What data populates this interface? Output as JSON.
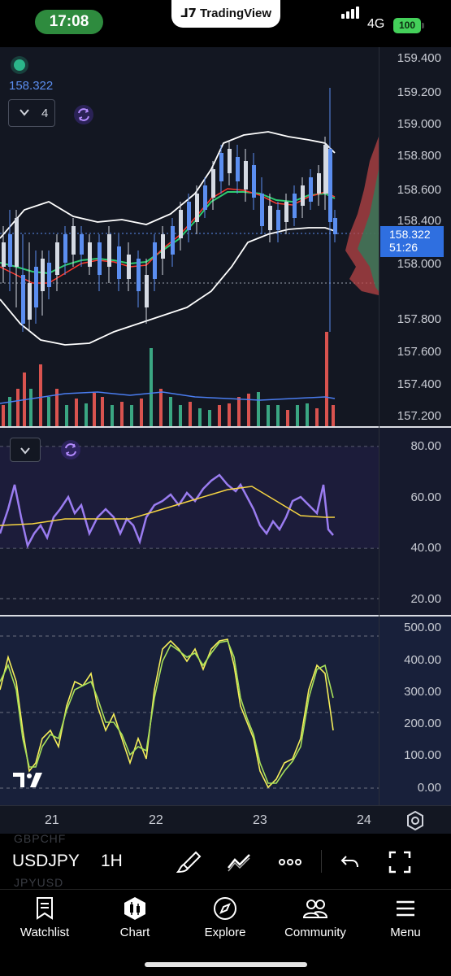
{
  "status_bar": {
    "time": "17:08",
    "center_app": "TradingView",
    "network": "4G",
    "battery": "100"
  },
  "chart": {
    "current_price": "158.322",
    "last_price_tag": {
      "price": "158.322",
      "countdown": "51:26"
    },
    "indicator_count": "4",
    "price_axis": [
      "159.400",
      "159.200",
      "159.000",
      "158.800",
      "158.600",
      "158.400",
      "158.000",
      "157.800",
      "157.600",
      "157.400",
      "157.200"
    ],
    "rsi_axis": [
      "80.00",
      "60.00",
      "40.00",
      "20.00"
    ],
    "osc_axis": [
      "500.00",
      "400.00",
      "300.00",
      "200.00",
      "100.00",
      "0.00"
    ],
    "time_axis": [
      "21",
      "22",
      "23",
      "24"
    ],
    "colors": {
      "background": "#131722",
      "up_candle": "#5b8ef0",
      "down_candle": "#d5dae3",
      "bollinger": "#ffffff",
      "ma_fast": "#ff3b30",
      "ma_slow": "#2ecc71",
      "rsi_line": "#9a7cf0",
      "rsi_signal": "#f5d442",
      "stoch_k": "#f5ee5a",
      "stoch_d": "#a6e05a",
      "volume_up": "#3aa682",
      "volume_down": "#d9534f",
      "last_price": "#2f6fe0"
    }
  },
  "toolbar": {
    "symbol": "USDJPY",
    "symbol_prev": "GBPCHF",
    "symbol_next": "JPYUSD",
    "timeframe": "1H",
    "icons": [
      "brush-icon",
      "trend-line-icon",
      "more-icon",
      "undo-icon",
      "fullscreen-icon"
    ]
  },
  "tabs": [
    {
      "label": "Watchlist",
      "icon": "bookmark-icon"
    },
    {
      "label": "Chart",
      "icon": "chart-icon"
    },
    {
      "label": "Explore",
      "icon": "compass-icon"
    },
    {
      "label": "Community",
      "icon": "people-icon"
    },
    {
      "label": "Menu",
      "icon": "hamburger-icon"
    }
  ]
}
